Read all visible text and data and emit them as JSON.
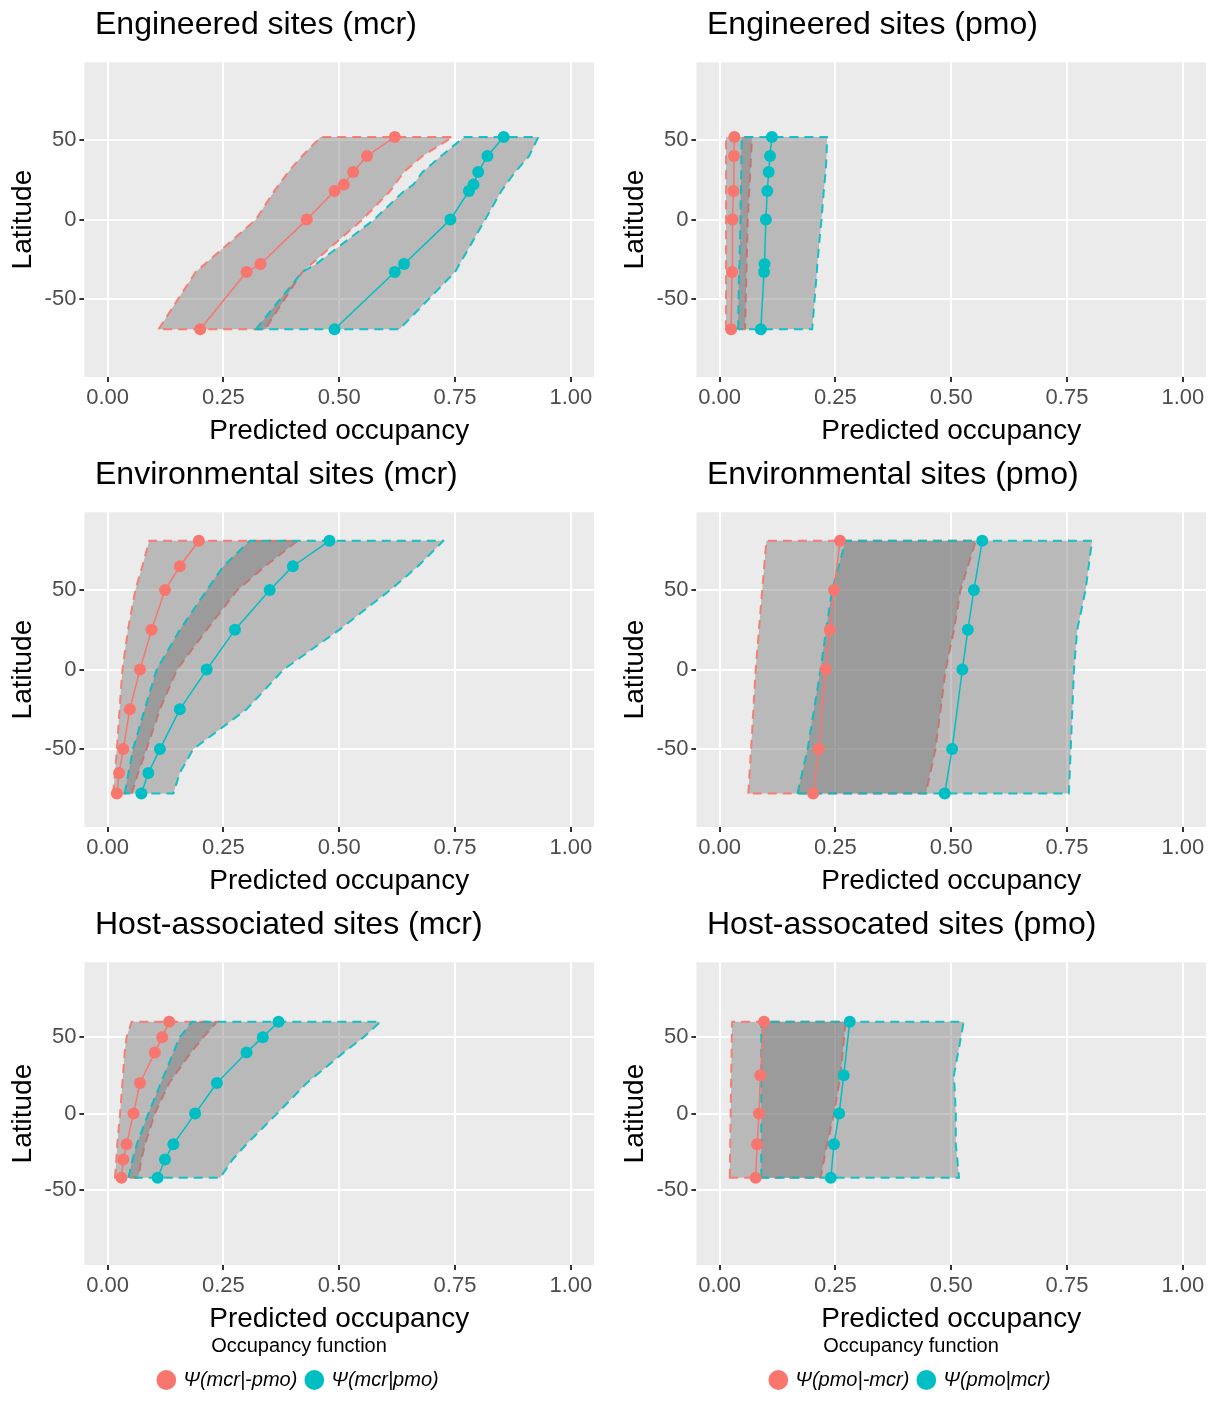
{
  "chart_data": [
    {
      "type": "line",
      "title": "Engineered sites (mcr)",
      "xlabel": "Predicted occupancy",
      "ylabel": "Latitude",
      "orientation": "horizontal",
      "marker": "circle",
      "grid": true,
      "legend": false,
      "xlim": [
        -0.05,
        1.05
      ],
      "ylim": [
        -99,
        99
      ],
      "xticks": [
        {
          "value": 0,
          "label": "0.00"
        },
        {
          "value": 0.25,
          "label": "0.25"
        },
        {
          "value": 0.5,
          "label": "0.50"
        },
        {
          "value": 0.75,
          "label": "0.75"
        },
        {
          "value": 1,
          "label": "1.00"
        }
      ],
      "yticks": [
        -50,
        0,
        50
      ],
      "series": [
        {
          "color": "#f8766d",
          "x": [
            -69,
            -33,
            -28,
            0,
            18,
            22,
            30,
            40,
            52
          ],
          "values": [
            0.2,
            0.3,
            0.33,
            0.43,
            0.49,
            0.51,
            0.53,
            0.56,
            0.62
          ],
          "lower": [
            0.11,
            0.19,
            0.21,
            0.32,
            0.36,
            0.37,
            0.39,
            0.42,
            0.46
          ],
          "upper": [
            0.34,
            0.42,
            0.44,
            0.55,
            0.61,
            0.62,
            0.64,
            0.68,
            0.745
          ]
        },
        {
          "color": "#00bfc4",
          "x": [
            -69,
            -33,
            -28,
            0,
            18,
            22,
            30,
            40,
            52
          ],
          "values": [
            0.49,
            0.62,
            0.64,
            0.74,
            0.78,
            0.79,
            0.8,
            0.82,
            0.855
          ],
          "lower": [
            0.32,
            0.42,
            0.45,
            0.575,
            0.64,
            0.66,
            0.68,
            0.72,
            0.77
          ],
          "upper": [
            0.63,
            0.75,
            0.76,
            0.815,
            0.85,
            0.86,
            0.88,
            0.91,
            0.93
          ]
        }
      ]
    },
    {
      "type": "line",
      "title": "Engineered sites (pmo)",
      "xlabel": "Predicted occupancy",
      "ylabel": "Latitude",
      "orientation": "horizontal",
      "marker": "circle",
      "grid": true,
      "legend": false,
      "xlim": [
        -0.05,
        1.05
      ],
      "ylim": [
        -99,
        99
      ],
      "xticks": [
        {
          "value": 0,
          "label": "0.00"
        },
        {
          "value": 0.25,
          "label": "0.25"
        },
        {
          "value": 0.5,
          "label": "0.50"
        },
        {
          "value": 0.75,
          "label": "0.75"
        },
        {
          "value": 1,
          "label": "1.00"
        }
      ],
      "yticks": [
        -50,
        0,
        50
      ],
      "series": [
        {
          "color": "#f8766d",
          "x": [
            -69,
            -33,
            0,
            18,
            40,
            52
          ],
          "values": [
            0.025,
            0.027,
            0.028,
            0.03,
            0.031,
            0.032
          ],
          "lower": [
            0.014,
            0.014,
            0.014,
            0.014,
            0.014,
            0.014
          ],
          "upper": [
            0.055,
            0.058,
            0.061,
            0.064,
            0.068,
            0.07
          ]
        },
        {
          "color": "#00bfc4",
          "x": [
            -69,
            -33,
            -28,
            0,
            18,
            30,
            40,
            52
          ],
          "values": [
            0.089,
            0.096,
            0.097,
            0.1,
            0.103,
            0.106,
            0.109,
            0.113
          ],
          "lower": [
            0.04,
            0.042,
            0.043,
            0.045,
            0.046,
            0.047,
            0.047,
            0.048
          ],
          "upper": [
            0.2,
            0.21,
            0.211,
            0.22,
            0.225,
            0.229,
            0.231,
            0.232
          ]
        }
      ]
    },
    {
      "type": "line",
      "title": "Environmental sites (mcr)",
      "xlabel": "Predicted occupancy",
      "ylabel": "Latitude",
      "orientation": "horizontal",
      "marker": "circle",
      "grid": true,
      "legend": false,
      "xlim": [
        -0.05,
        1.05
      ],
      "ylim": [
        -99,
        99
      ],
      "xticks": [
        {
          "value": 0,
          "label": "0.00"
        },
        {
          "value": 0.25,
          "label": "0.25"
        },
        {
          "value": 0.5,
          "label": "0.50"
        },
        {
          "value": 0.75,
          "label": "0.75"
        },
        {
          "value": 1,
          "label": "1.00"
        }
      ],
      "yticks": [
        -50,
        0,
        50
      ],
      "series": [
        {
          "color": "#f8766d",
          "x": [
            -78,
            -65,
            -50,
            -25,
            0,
            25,
            50,
            65,
            81
          ],
          "values": [
            0.02,
            0.025,
            0.034,
            0.048,
            0.07,
            0.095,
            0.124,
            0.156,
            0.197
          ],
          "lower": [
            0.012,
            0.016,
            0.02,
            0.026,
            0.032,
            0.044,
            0.06,
            0.075,
            0.09
          ],
          "upper": [
            0.052,
            0.066,
            0.084,
            0.113,
            0.15,
            0.214,
            0.28,
            0.34,
            0.41
          ]
        },
        {
          "color": "#00bfc4",
          "x": [
            -78,
            -65,
            -50,
            -25,
            0,
            25,
            50,
            65,
            81
          ],
          "values": [
            0.073,
            0.088,
            0.113,
            0.156,
            0.214,
            0.275,
            0.35,
            0.4,
            0.479
          ],
          "lower": [
            0.037,
            0.045,
            0.055,
            0.08,
            0.106,
            0.156,
            0.214,
            0.25,
            0.307
          ],
          "upper": [
            0.142,
            0.156,
            0.185,
            0.3,
            0.38,
            0.5,
            0.61,
            0.67,
            0.725
          ]
        }
      ]
    },
    {
      "type": "line",
      "title": "Environmental sites (pmo)",
      "xlabel": "Predicted occupancy",
      "ylabel": "Latitude",
      "orientation": "horizontal",
      "marker": "circle",
      "grid": true,
      "legend": false,
      "xlim": [
        -0.05,
        1.05
      ],
      "ylim": [
        -99,
        99
      ],
      "xticks": [
        {
          "value": 0,
          "label": "0.00"
        },
        {
          "value": 0.25,
          "label": "0.25"
        },
        {
          "value": 0.5,
          "label": "0.50"
        },
        {
          "value": 0.75,
          "label": "0.75"
        },
        {
          "value": 1,
          "label": "1.00"
        }
      ],
      "yticks": [
        -50,
        0,
        50
      ],
      "series": [
        {
          "color": "#f8766d",
          "x": [
            -78,
            -50,
            0,
            25,
            50,
            81
          ],
          "values": [
            0.202,
            0.214,
            0.229,
            0.238,
            0.247,
            0.26
          ],
          "lower": [
            0.062,
            0.068,
            0.078,
            0.085,
            0.092,
            0.101
          ],
          "upper": [
            0.445,
            0.466,
            0.488,
            0.506,
            0.52,
            0.553
          ]
        },
        {
          "color": "#00bfc4",
          "x": [
            -78,
            -50,
            0,
            25,
            50,
            81
          ],
          "values": [
            0.486,
            0.502,
            0.524,
            0.536,
            0.549,
            0.567
          ],
          "lower": [
            0.168,
            0.19,
            0.218,
            0.23,
            0.243,
            0.272
          ],
          "upper": [
            0.754,
            0.758,
            0.765,
            0.772,
            0.79,
            0.804
          ]
        }
      ]
    },
    {
      "type": "line",
      "title": "Host-associated sites (mcr)",
      "xlabel": "Predicted occupancy",
      "ylabel": "Latitude",
      "orientation": "horizontal",
      "marker": "circle",
      "grid": true,
      "legend": "bottom",
      "legend_title": "Occupancy function",
      "xlim": [
        -0.05,
        1.05
      ],
      "ylim": [
        -99,
        99
      ],
      "xticks": [
        {
          "value": 0,
          "label": "0.00"
        },
        {
          "value": 0.25,
          "label": "0.25"
        },
        {
          "value": 0.5,
          "label": "0.50"
        },
        {
          "value": 0.75,
          "label": "0.75"
        },
        {
          "value": 1,
          "label": "1.00"
        }
      ],
      "yticks": [
        -50,
        0,
        50
      ],
      "series": [
        {
          "name": "Ψ(mcr|-pmo)",
          "color": "#f8766d",
          "x": [
            -42,
            -30,
            -20,
            0,
            20,
            40,
            50,
            60
          ],
          "values": [
            0.03,
            0.034,
            0.041,
            0.056,
            0.07,
            0.102,
            0.118,
            0.133
          ],
          "lower": [
            0.016,
            0.019,
            0.021,
            0.027,
            0.032,
            0.037,
            0.041,
            0.052
          ],
          "upper": [
            0.066,
            0.073,
            0.081,
            0.102,
            0.133,
            0.18,
            0.207,
            0.236
          ]
        },
        {
          "name": "Ψ(mcr|pmo)",
          "color": "#00bfc4",
          "x": [
            -42,
            -30,
            -20,
            0,
            20,
            40,
            50,
            60
          ],
          "values": [
            0.108,
            0.124,
            0.142,
            0.189,
            0.236,
            0.3,
            0.335,
            0.369
          ],
          "lower": [
            0.045,
            0.054,
            0.063,
            0.088,
            0.115,
            0.142,
            0.156,
            0.182
          ],
          "upper": [
            0.243,
            0.27,
            0.3,
            0.366,
            0.43,
            0.51,
            0.553,
            0.589
          ]
        }
      ]
    },
    {
      "type": "line",
      "title": "Host-assocated sites (pmo)",
      "xlabel": "Predicted occupancy",
      "ylabel": "Latitude",
      "orientation": "horizontal",
      "marker": "circle",
      "grid": true,
      "legend": "bottom",
      "legend_title": "Occupancy function",
      "xlim": [
        -0.05,
        1.05
      ],
      "ylim": [
        -99,
        99
      ],
      "xticks": [
        {
          "value": 0,
          "label": "0.00"
        },
        {
          "value": 0.25,
          "label": "0.25"
        },
        {
          "value": 0.5,
          "label": "0.50"
        },
        {
          "value": 0.75,
          "label": "0.75"
        },
        {
          "value": 1,
          "label": "1.00"
        }
      ],
      "yticks": [
        -50,
        0,
        50
      ],
      "series": [
        {
          "name": "Ψ(pmo|-mcr)",
          "color": "#f8766d",
          "x": [
            -42,
            -20,
            0,
            25,
            60
          ],
          "values": [
            0.078,
            0.081,
            0.085,
            0.088,
            0.096
          ],
          "lower": [
            0.022,
            0.023,
            0.024,
            0.025,
            0.027
          ],
          "upper": [
            0.218,
            0.232,
            0.247,
            0.261,
            0.272
          ]
        },
        {
          "name": "Ψ(pmo|mcr)",
          "color": "#00bfc4",
          "x": [
            -42,
            -20,
            0,
            25,
            60
          ],
          "values": [
            0.24,
            0.247,
            0.258,
            0.268,
            0.281
          ],
          "lower": [
            0.09,
            0.09,
            0.09,
            0.09,
            0.09
          ],
          "upper": [
            0.517,
            0.51,
            0.51,
            0.506,
            0.527
          ]
        }
      ]
    }
  ]
}
